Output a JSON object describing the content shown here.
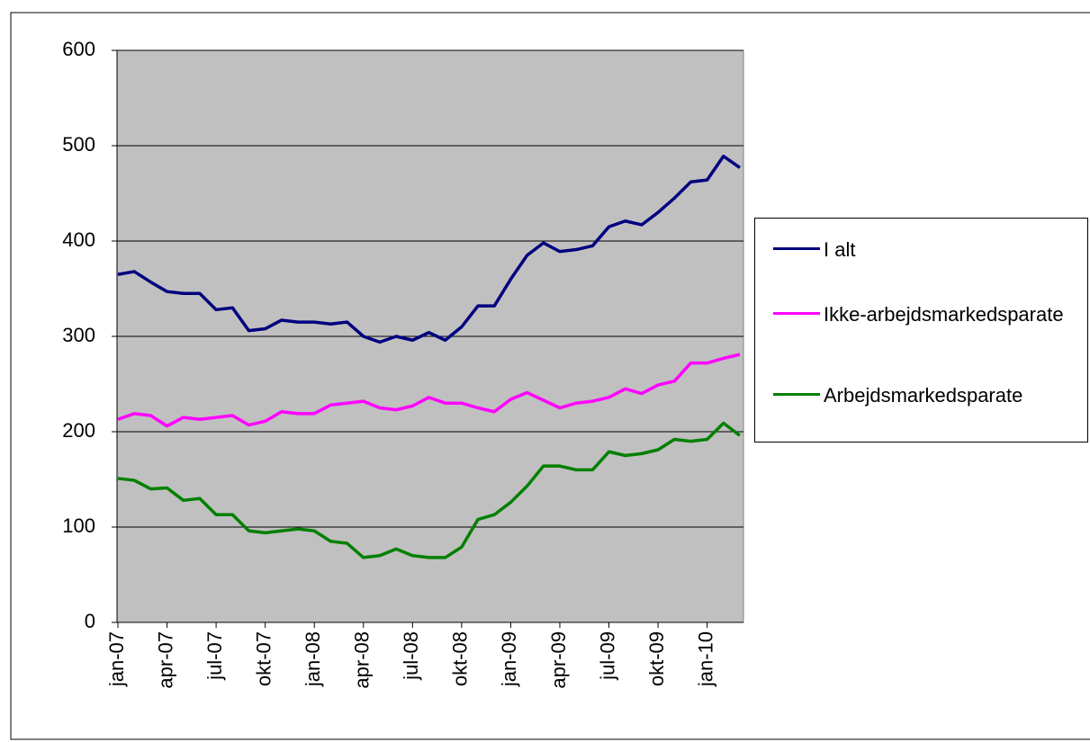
{
  "chart_data": {
    "type": "line",
    "categories": [
      "jan-07",
      null,
      null,
      "apr-07",
      null,
      null,
      "jul-07",
      null,
      null,
      "okt-07",
      null,
      null,
      "jan-08",
      null,
      null,
      "apr-08",
      null,
      null,
      "jul-08",
      null,
      null,
      "okt-08",
      null,
      null,
      "jan-09",
      null,
      null,
      "apr-09",
      null,
      null,
      "jul-09",
      null,
      null,
      "okt-09",
      null,
      null,
      "jan-10",
      null,
      null
    ],
    "series": [
      {
        "name": "I alt",
        "color": "#000080",
        "values": [
          365,
          368,
          357,
          347,
          345,
          345,
          328,
          330,
          306,
          308,
          317,
          315,
          315,
          313,
          315,
          300,
          294,
          300,
          296,
          304,
          296,
          310,
          332,
          332,
          360,
          385,
          398,
          389,
          391,
          395,
          415,
          421,
          417,
          430,
          445,
          462,
          464,
          489,
          477
        ]
      },
      {
        "name": "Ikke-arbejdsmarkedsparate",
        "color": "#ff00ff",
        "values": [
          213,
          219,
          217,
          206,
          215,
          213,
          215,
          217,
          207,
          211,
          221,
          219,
          219,
          228,
          230,
          232,
          225,
          223,
          227,
          236,
          230,
          230,
          225,
          221,
          234,
          241,
          233,
          225,
          230,
          232,
          236,
          245,
          240,
          249,
          253,
          272,
          272,
          277,
          281
        ]
      },
      {
        "name": "Arbejdsmarkedsparate",
        "color": "#008000",
        "values": [
          151,
          149,
          140,
          141,
          128,
          130,
          113,
          113,
          96,
          94,
          96,
          98,
          96,
          85,
          83,
          68,
          70,
          77,
          70,
          68,
          68,
          79,
          108,
          113,
          126,
          143,
          164,
          164,
          160,
          160,
          179,
          175,
          177,
          181,
          192,
          190,
          192,
          209,
          196
        ]
      }
    ],
    "ylim": [
      0,
      600
    ],
    "yticks": [
      0,
      100,
      200,
      300,
      400,
      500,
      600
    ],
    "grid": true,
    "plot_background": "#c0c0c0",
    "legend": "right"
  }
}
